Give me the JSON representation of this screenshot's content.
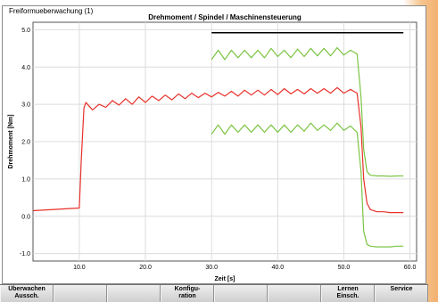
{
  "window": {
    "panel_title": "Freiformueberwachung (1)"
  },
  "chart_data": {
    "type": "line",
    "title": "Drehmoment / Spindel / Maschinensteuerung",
    "xlabel": "Zeit [s]",
    "ylabel": "Drehmoment [Nm]",
    "xlim": [
      3.0,
      61.0
    ],
    "ylim": [
      -1.2,
      5.2
    ],
    "x_ticks": [
      10.0,
      20.0,
      30.0,
      40.0,
      50.0,
      60.0
    ],
    "x_tick_labels": [
      "10.0",
      "20.0",
      "30.0",
      "40.0",
      "50.0",
      "60.0"
    ],
    "y_ticks": [
      -1.0,
      0.0,
      1.0,
      2.0,
      3.0,
      4.0,
      5.0
    ],
    "y_tick_labels": [
      "-1.0",
      "0.0",
      "1.0",
      "2.0",
      "3.0",
      "4.0",
      "5.0"
    ],
    "grid": true,
    "series": [
      {
        "color": "#e8312a",
        "x": [
          3.0,
          10.0,
          10.3,
          10.7,
          11.0,
          11.5,
          12.0,
          13.0,
          14.0,
          15.0,
          16.0,
          17.0,
          18.0,
          19.0,
          20.0,
          21.0,
          22.0,
          23.0,
          24.0,
          25.0,
          26.0,
          27.0,
          28.0,
          29.0,
          30.0,
          31.0,
          32.0,
          33.0,
          34.0,
          35.0,
          36.0,
          37.0,
          38.0,
          39.0,
          40.0,
          41.0,
          42.0,
          43.0,
          44.0,
          45.0,
          46.0,
          47.0,
          48.0,
          49.0,
          50.0,
          51.0,
          52.0,
          52.6,
          53.0,
          53.5,
          54.0,
          55.0,
          56.0,
          57.0,
          58.0,
          59.0
        ],
        "y": [
          0.15,
          0.22,
          1.5,
          2.9,
          3.05,
          2.95,
          2.85,
          3.0,
          2.92,
          3.1,
          2.98,
          3.15,
          3.0,
          3.2,
          3.05,
          3.22,
          3.1,
          3.25,
          3.12,
          3.28,
          3.15,
          3.3,
          3.18,
          3.3,
          3.2,
          3.32,
          3.22,
          3.35,
          3.22,
          3.38,
          3.25,
          3.38,
          3.25,
          3.4,
          3.26,
          3.42,
          3.28,
          3.4,
          3.28,
          3.42,
          3.3,
          3.42,
          3.3,
          3.45,
          3.3,
          3.4,
          3.3,
          2.4,
          1.0,
          0.35,
          0.18,
          0.12,
          0.12,
          0.1,
          0.1,
          0.1
        ]
      },
      {
        "color": "#7bc443",
        "x": [
          30.0,
          31.0,
          32.0,
          33.0,
          34.0,
          35.0,
          36.0,
          37.0,
          38.0,
          39.0,
          40.0,
          41.0,
          42.0,
          43.0,
          44.0,
          45.0,
          46.0,
          47.0,
          48.0,
          49.0,
          50.0,
          51.0,
          52.0,
          52.6,
          53.0,
          53.5,
          54.0,
          55.0,
          56.0,
          57.0,
          58.0,
          59.0
        ],
        "y": [
          4.2,
          4.45,
          4.2,
          4.45,
          4.25,
          4.45,
          4.25,
          4.45,
          4.25,
          4.5,
          4.28,
          4.45,
          4.25,
          4.48,
          4.28,
          4.5,
          4.3,
          4.5,
          4.3,
          4.52,
          4.32,
          4.45,
          4.35,
          3.2,
          1.8,
          1.2,
          1.1,
          1.08,
          1.08,
          1.07,
          1.08,
          1.08
        ]
      },
      {
        "color": "#7bc443",
        "x": [
          30.0,
          31.0,
          32.0,
          33.0,
          34.0,
          35.0,
          36.0,
          37.0,
          38.0,
          39.0,
          40.0,
          41.0,
          42.0,
          43.0,
          44.0,
          45.0,
          46.0,
          47.0,
          48.0,
          49.0,
          50.0,
          51.0,
          52.0,
          52.6,
          53.0,
          53.5,
          54.0,
          55.0,
          56.0,
          57.0,
          58.0,
          59.0
        ],
        "y": [
          2.2,
          2.45,
          2.2,
          2.45,
          2.25,
          2.45,
          2.25,
          2.45,
          2.25,
          2.45,
          2.25,
          2.45,
          2.25,
          2.45,
          2.28,
          2.5,
          2.3,
          2.45,
          2.3,
          2.5,
          2.3,
          2.42,
          2.25,
          1.2,
          -0.4,
          -0.75,
          -0.8,
          -0.82,
          -0.82,
          -0.82,
          -0.8,
          -0.8
        ]
      },
      {
        "color": "#000000",
        "x": [
          30.0,
          59.0
        ],
        "y": [
          4.92,
          4.92
        ]
      }
    ]
  },
  "softkeys": [
    {
      "label": "Überwachen\nAussch."
    },
    {
      "label": ""
    },
    {
      "label": ""
    },
    {
      "label": "Konfigu-\nration"
    },
    {
      "label": ""
    },
    {
      "label": ""
    },
    {
      "label": "Lernen\nEinsch."
    },
    {
      "label": "Service"
    }
  ]
}
